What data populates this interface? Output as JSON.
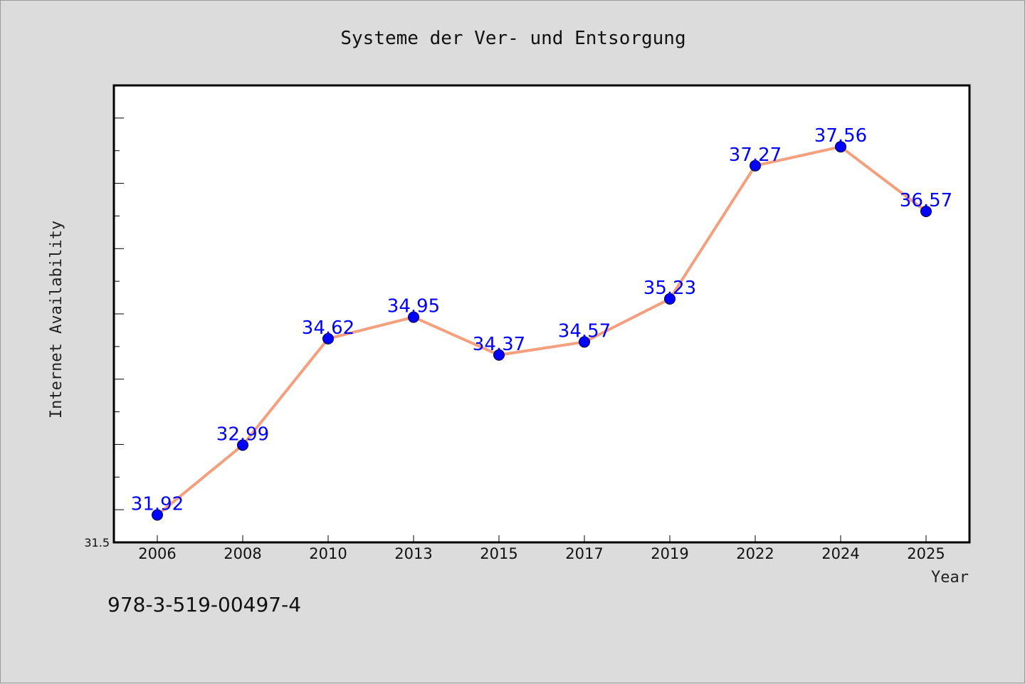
{
  "chart_data": {
    "type": "line",
    "title": "Systeme der Ver- und Entsorgung",
    "xlabel": "Year",
    "ylabel": "Internet Availability",
    "categories": [
      "2006",
      "2008",
      "2010",
      "2013",
      "2015",
      "2017",
      "2019",
      "2022",
      "2024",
      "2025"
    ],
    "series": [
      {
        "values": [
          31.92,
          32.99,
          34.62,
          34.95,
          34.37,
          34.57,
          35.23,
          37.27,
          37.56,
          36.57
        ]
      }
    ],
    "ylim": [
      31.5,
      38.5
    ],
    "y_tick_labels": [
      "31.5"
    ],
    "y_minor_tick_step": 0.5,
    "data_labels": [
      "31.92",
      "32.99",
      "34.62",
      "34.95",
      "34.37",
      "34.57",
      "35.23",
      "37.27",
      "37.56",
      "36.57"
    ],
    "grid": false,
    "line_color": "#f4a07e",
    "marker_color": "#0000ff",
    "label_color": "#0000ff"
  },
  "footnote": "978-3-519-00497-4"
}
